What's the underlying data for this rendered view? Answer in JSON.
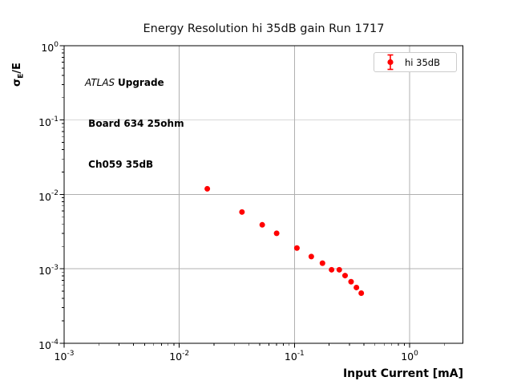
{
  "chart_data": {
    "type": "scatter",
    "title": "Energy Resolution hi 35dB gain Run 1717",
    "xlabel": "Input Current [mA]",
    "ylabel": {
      "sigma": "σ",
      "sub": "E",
      "rest": "/E"
    },
    "x_scale": "log",
    "y_scale": "log",
    "xlim": [
      0.001,
      2.9
    ],
    "ylim": [
      0.0001,
      1.0
    ],
    "x_tick_exponents": [
      -3,
      -2,
      -1,
      0
    ],
    "y_tick_exponents": [
      0,
      -1,
      -2,
      -3,
      -4
    ],
    "grid": true,
    "legend": {
      "label": "hi 35dB",
      "position": "upper right",
      "marker": "errorbar-point"
    },
    "annotation": {
      "line1_italic": "ATLAS ",
      "line1_bold": "Upgrade",
      "line2": " Board 634 25ohm",
      "line3": " Ch059 35dB"
    },
    "colors": {
      "marker": "#ff0000",
      "grid": "#b0b0b0",
      "spine": "#000000",
      "legend_border": "#cccccc"
    },
    "series": [
      {
        "name": "hi 35dB",
        "x": [
          0.0175,
          0.035,
          0.0525,
          0.07,
          0.105,
          0.14,
          0.175,
          0.21,
          0.245,
          0.275,
          0.31,
          0.345,
          0.38
        ],
        "y": [
          0.0119,
          0.0058,
          0.0039,
          0.003,
          0.0019,
          0.00146,
          0.00119,
          0.00097,
          0.00097,
          0.00081,
          0.00067,
          0.00056,
          0.00047
        ]
      }
    ]
  }
}
